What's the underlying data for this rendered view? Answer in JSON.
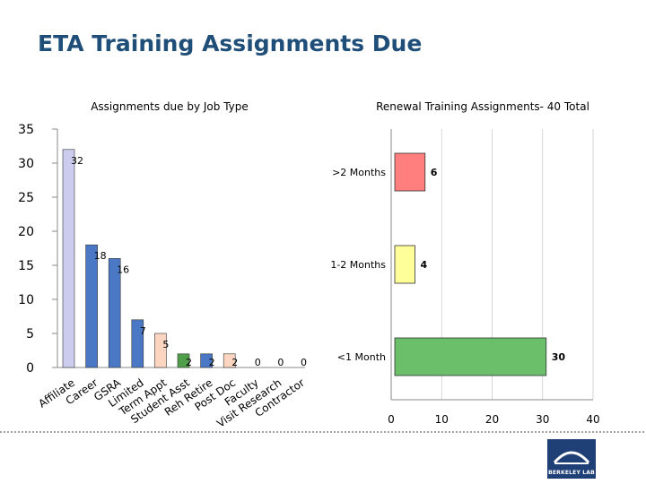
{
  "slide": {
    "title": "ETA Training Assignments Due"
  },
  "colors": {
    "title": "#1f4e79",
    "bar_left_1": "#ccccee",
    "bar_left_2": "#4a78c4",
    "bar_left_3": "#fbd5c0",
    "bar_left_4": "#4f9e4a",
    "bar_right_1": "#ff7f7f",
    "bar_right_2": "#ffff99",
    "bar_right_3": "#6bbf6b"
  },
  "logo": {
    "caption": "BERKELEY LAB"
  },
  "chart_data": [
    {
      "type": "bar",
      "title": "Assignments due by Job Type",
      "categories": [
        "Affiliate",
        "Career",
        "GSRA",
        "Limited",
        "Term Appt",
        "Student Asst",
        "Reh Retire",
        "Post Doc",
        "Faculty",
        "Visit Research",
        "Contractor"
      ],
      "values": [
        32,
        18,
        16,
        7,
        5,
        2,
        2,
        2,
        0,
        0,
        0
      ],
      "data_labels": [
        "32",
        "18",
        "16",
        "7",
        "5",
        "2",
        "2",
        "2",
        "0",
        "0",
        "0"
      ],
      "ylim": [
        0,
        35
      ],
      "yticks": [
        "0",
        "5",
        "10",
        "15",
        "20",
        "25",
        "30",
        "35"
      ],
      "grid": false,
      "legend": "none"
    },
    {
      "type": "bar",
      "orientation": "horizontal",
      "title": "Renewal Training Assignments- 40 Total",
      "categories": [
        ">2 Months",
        "1-2 Months",
        "<1 Month"
      ],
      "values": [
        6,
        4,
        30
      ],
      "data_labels": [
        "6",
        "4",
        "30"
      ],
      "xlim": [
        0,
        40
      ],
      "xticks": [
        "0",
        "10",
        "20",
        "30",
        "40"
      ],
      "grid": true,
      "legend": "none"
    }
  ]
}
